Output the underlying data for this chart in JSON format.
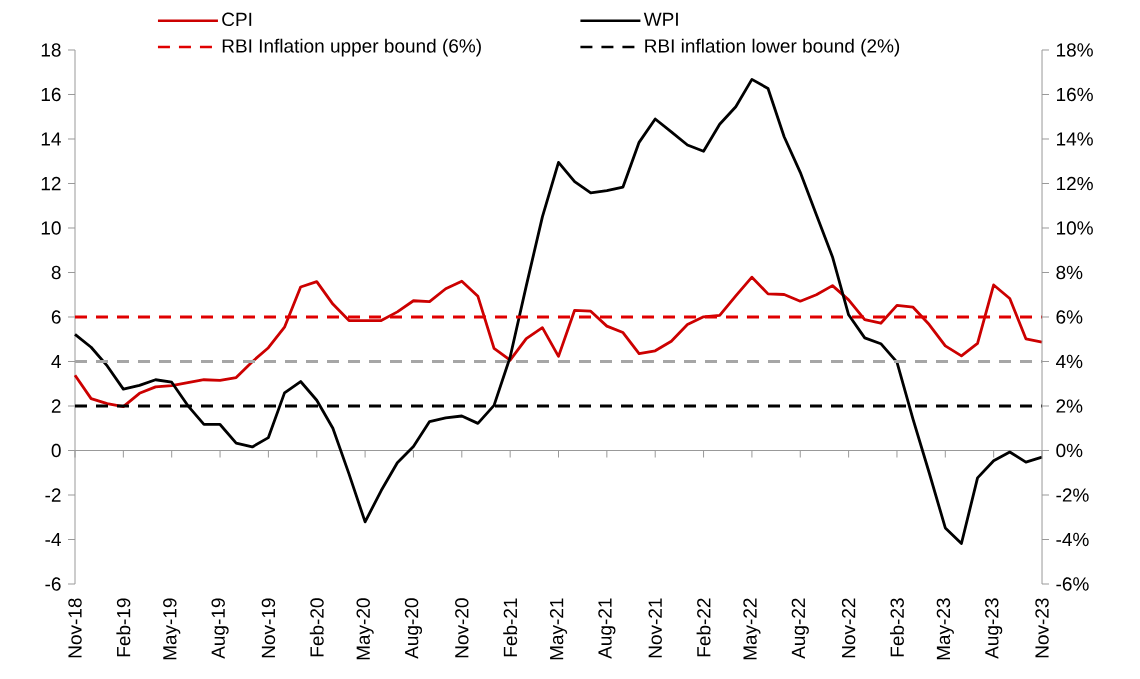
{
  "chart_data": {
    "type": "line",
    "categories": [
      "Nov-18",
      null,
      null,
      "Feb-19",
      null,
      null,
      "May-19",
      null,
      null,
      "Aug-19",
      null,
      null,
      "Nov-19",
      null,
      null,
      "Feb-20",
      null,
      null,
      "May-20",
      null,
      null,
      "Aug-20",
      null,
      null,
      "Nov-20",
      null,
      null,
      "Feb-21",
      null,
      null,
      "May-21",
      null,
      null,
      "Aug-21",
      null,
      null,
      "Nov-21",
      null,
      null,
      "Feb-22",
      null,
      null,
      "May-22",
      null,
      null,
      "Aug-22",
      null,
      null,
      "Nov-22",
      null,
      null,
      "Feb-23",
      null,
      null,
      "May-23",
      null,
      null,
      "Aug-23",
      null,
      null,
      "Nov-23"
    ],
    "series": [
      {
        "name": "CPI",
        "color": "#cc0000",
        "values": [
          3.38,
          2.33,
          2.11,
          1.97,
          2.57,
          2.86,
          2.92,
          3.05,
          3.18,
          3.15,
          3.28,
          3.99,
          4.62,
          5.54,
          7.35,
          7.59,
          6.58,
          5.84,
          5.84,
          5.84,
          6.23,
          6.73,
          6.69,
          7.27,
          7.61,
          6.93,
          4.59,
          4.06,
          5.03,
          5.52,
          4.23,
          6.3,
          6.26,
          5.59,
          5.3,
          4.35,
          4.48,
          4.91,
          5.66,
          6.01,
          6.07,
          6.95,
          7.79,
          7.04,
          7.01,
          6.71,
          7.0,
          7.41,
          6.77,
          5.88,
          5.72,
          6.52,
          6.44,
          5.66,
          4.7,
          4.25,
          4.81,
          7.44,
          6.83,
          5.02,
          4.87
        ]
      },
      {
        "name": "WPI",
        "color": "#000000",
        "values": [
          5.22,
          4.64,
          3.8,
          2.76,
          2.93,
          3.18,
          3.07,
          2.02,
          1.17,
          1.17,
          0.33,
          0.16,
          0.58,
          2.59,
          3.1,
          2.26,
          1.0,
          -1.05,
          -3.21,
          -1.8,
          -0.55,
          0.18,
          1.3,
          1.47,
          1.55,
          1.22,
          2.03,
          4.2,
          7.4,
          10.5,
          12.95,
          12.08,
          11.58,
          11.68,
          11.84,
          13.85,
          14.9,
          14.32,
          13.73,
          13.45,
          14.66,
          15.45,
          16.68,
          16.27,
          14.1,
          12.5,
          10.6,
          8.7,
          6.1,
          5.06,
          4.8,
          3.97,
          1.4,
          -1.0,
          -3.48,
          -4.18,
          -1.23,
          -0.46,
          -0.07,
          -0.52,
          -0.3
        ]
      }
    ],
    "ylim": [
      -6,
      18
    ],
    "yticks": [
      -6,
      -4,
      -2,
      0,
      2,
      4,
      6,
      8,
      10,
      12,
      14,
      16,
      18
    ],
    "y2lim": [
      -6,
      18
    ],
    "y2ticks": [
      {
        "value": -6,
        "label": "-6%"
      },
      {
        "value": -4,
        "label": "-4%"
      },
      {
        "value": -2,
        "label": "-2%"
      },
      {
        "value": 0,
        "label": "0%"
      },
      {
        "value": 2,
        "label": "2%"
      },
      {
        "value": 4,
        "label": "4%"
      },
      {
        "value": 6,
        "label": "6%"
      },
      {
        "value": 8,
        "label": "8%"
      },
      {
        "value": 10,
        "label": "10%"
      },
      {
        "value": 12,
        "label": "12%"
      },
      {
        "value": 14,
        "label": "14%"
      },
      {
        "value": 16,
        "label": "16%"
      },
      {
        "value": 18,
        "label": "18%"
      }
    ],
    "ref_lines": [
      {
        "axis": "y",
        "value": 6,
        "label": "RBI Inflation upper bound (6%)",
        "color": "#e00000",
        "line_style": "dashed"
      },
      {
        "axis": "y",
        "value": 2,
        "label": "RBI inflation lower bound (2%)",
        "color": "#000000",
        "line_style": "dashed"
      },
      {
        "axis": "y",
        "value": 4,
        "color": "#a6a6a6",
        "line_style": "dashed"
      }
    ],
    "legend": "top"
  }
}
